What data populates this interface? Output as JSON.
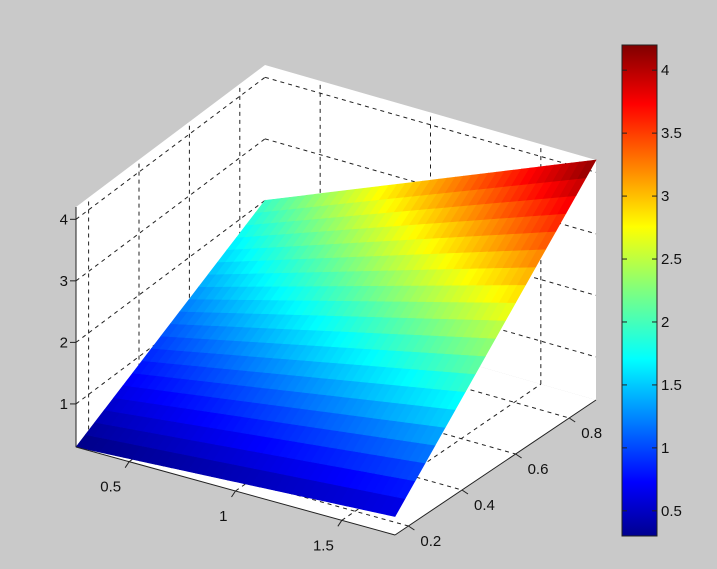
{
  "chart_data": {
    "type": "surface",
    "title": "",
    "x": [
      0.25,
      0.5,
      1.0,
      1.5,
      1.75
    ],
    "y": [
      0.2,
      0.4,
      0.6,
      0.8,
      0.88
    ],
    "x_ticks": [
      "0.5",
      "1",
      "1.5"
    ],
    "y_ticks": [
      "0.2",
      "0.4",
      "0.6",
      "0.8"
    ],
    "z_ticks": [
      "1",
      "2",
      "3",
      "4"
    ],
    "xlim": [
      0.25,
      1.75
    ],
    "ylim": [
      0.15,
      0.9
    ],
    "zlim": [
      0.3,
      4.2
    ],
    "grid": true,
    "surface_corners": [
      {
        "x": 0.25,
        "y": 0.15,
        "z": 0.3
      },
      {
        "x": 1.75,
        "y": 0.15,
        "z": 0.6
      },
      {
        "x": 1.75,
        "y": 0.9,
        "z": 4.2
      },
      {
        "x": 0.25,
        "y": 0.9,
        "z": 2.0
      }
    ],
    "colormap": "jet",
    "colorbar": {
      "ticks": [
        "0.5",
        "1",
        "1.5",
        "2",
        "2.5",
        "3",
        "3.5",
        "4"
      ],
      "tick_values": [
        0.5,
        1,
        1.5,
        2,
        2.5,
        3,
        3.5,
        4
      ],
      "clim": [
        0.3,
        4.2
      ]
    }
  }
}
